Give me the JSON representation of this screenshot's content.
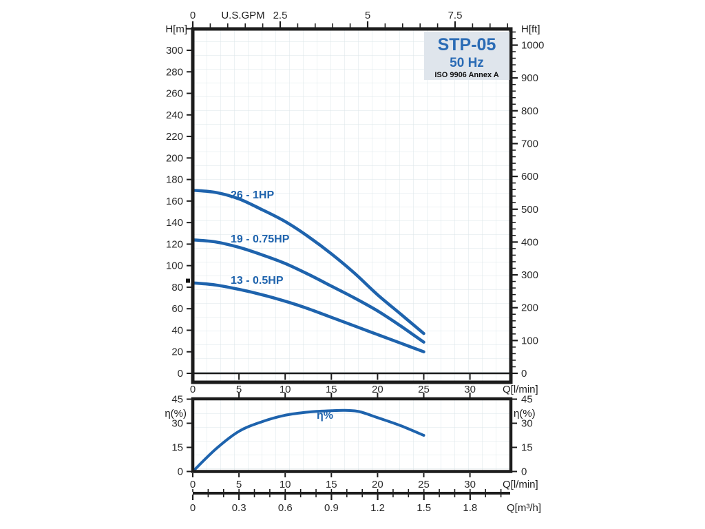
{
  "colors": {
    "curve": "#1e63ad",
    "label_blue": "#2a6bb5",
    "frame": "#1c1c1c",
    "grid": "#dbe5e9",
    "box_bg": "#dfe5ec",
    "text": "#2b2b2b"
  },
  "chart_data": [
    {
      "id": "head-capacity",
      "type": "line",
      "title": "STP-05",
      "subtitle": "50 Hz",
      "note": "ISO 9906 Annex A",
      "grid": true,
      "legend_position": "inline-labels",
      "axes": {
        "top": {
          "label": "U.S.GPM",
          "tick_labels": [
            "0",
            "2.5",
            "5",
            "7.5"
          ],
          "tick_values": [
            0,
            2.5,
            5,
            7.5
          ],
          "minor_step": 0.5,
          "max": 9
        },
        "bottom": {
          "label": "Q[l/min]",
          "tick_values": [
            0,
            5,
            10,
            15,
            20,
            25,
            30
          ],
          "max": 34.4
        },
        "left": {
          "label": "H[m]",
          "tick_values": [
            0,
            20,
            40,
            60,
            80,
            100,
            120,
            140,
            160,
            180,
            200,
            220,
            240,
            260,
            280,
            300
          ],
          "tick_step": 20,
          "max": 320
        },
        "right": {
          "label": "H[ft]",
          "tick_values": [
            0,
            100,
            200,
            300,
            400,
            500,
            600,
            700,
            800,
            900,
            1000
          ],
          "minor_step": 20,
          "max": 1040
        }
      },
      "series": [
        {
          "name": "26 - 1HP",
          "x": [
            0,
            2.5,
            5,
            7.5,
            10,
            12.5,
            15,
            17.5,
            20,
            22.5,
            25
          ],
          "y": [
            170,
            168,
            162,
            152,
            141,
            127,
            111,
            93,
            73,
            55,
            37
          ]
        },
        {
          "name": "19 - 0.75HP",
          "x": [
            0,
            2.5,
            5,
            7.5,
            10,
            12.5,
            15,
            17.5,
            20,
            22.5,
            25
          ],
          "y": [
            124,
            122,
            117,
            110,
            102,
            92,
            81,
            70,
            58,
            44,
            29
          ]
        },
        {
          "name": "13 - 0.5HP",
          "x": [
            0,
            2.5,
            5,
            7.5,
            10,
            12.5,
            15,
            17.5,
            20,
            22.5,
            25
          ],
          "y": [
            84,
            82,
            78,
            73,
            67,
            60,
            52,
            44,
            36,
            28,
            20
          ]
        }
      ],
      "marker": {
        "x": 0,
        "y": 86
      }
    },
    {
      "id": "efficiency",
      "type": "line",
      "grid": true,
      "ylim": [
        0,
        45
      ],
      "axes": {
        "left": {
          "label": "η(%)",
          "tick_values": [
            0,
            15,
            30,
            45
          ]
        },
        "right": {
          "label": "η(%)",
          "tick_values": [
            0,
            15,
            30,
            45
          ]
        },
        "bottom": {
          "label": "Q[l/min]",
          "tick_values": [
            0,
            5,
            10,
            15,
            20,
            25,
            30
          ],
          "max": 34.4
        }
      },
      "series": [
        {
          "name": "η%",
          "x": [
            0,
            2.5,
            5,
            7.5,
            10,
            12.5,
            15,
            16.5,
            18,
            20,
            22.5,
            25
          ],
          "y": [
            0,
            14,
            25,
            31,
            35,
            37,
            37.8,
            38,
            37.3,
            33.5,
            28.5,
            22.5
          ]
        }
      ]
    }
  ],
  "flow_scale": {
    "label": "Q[m³/h]",
    "tick_labels": [
      "0",
      "0.3",
      "0.6",
      "0.9",
      "1.2",
      "1.5",
      "1.8"
    ],
    "tick_values": [
      0,
      0.3,
      0.6,
      0.9,
      1.2,
      1.5,
      1.8
    ],
    "minor_step": 0.1
  }
}
